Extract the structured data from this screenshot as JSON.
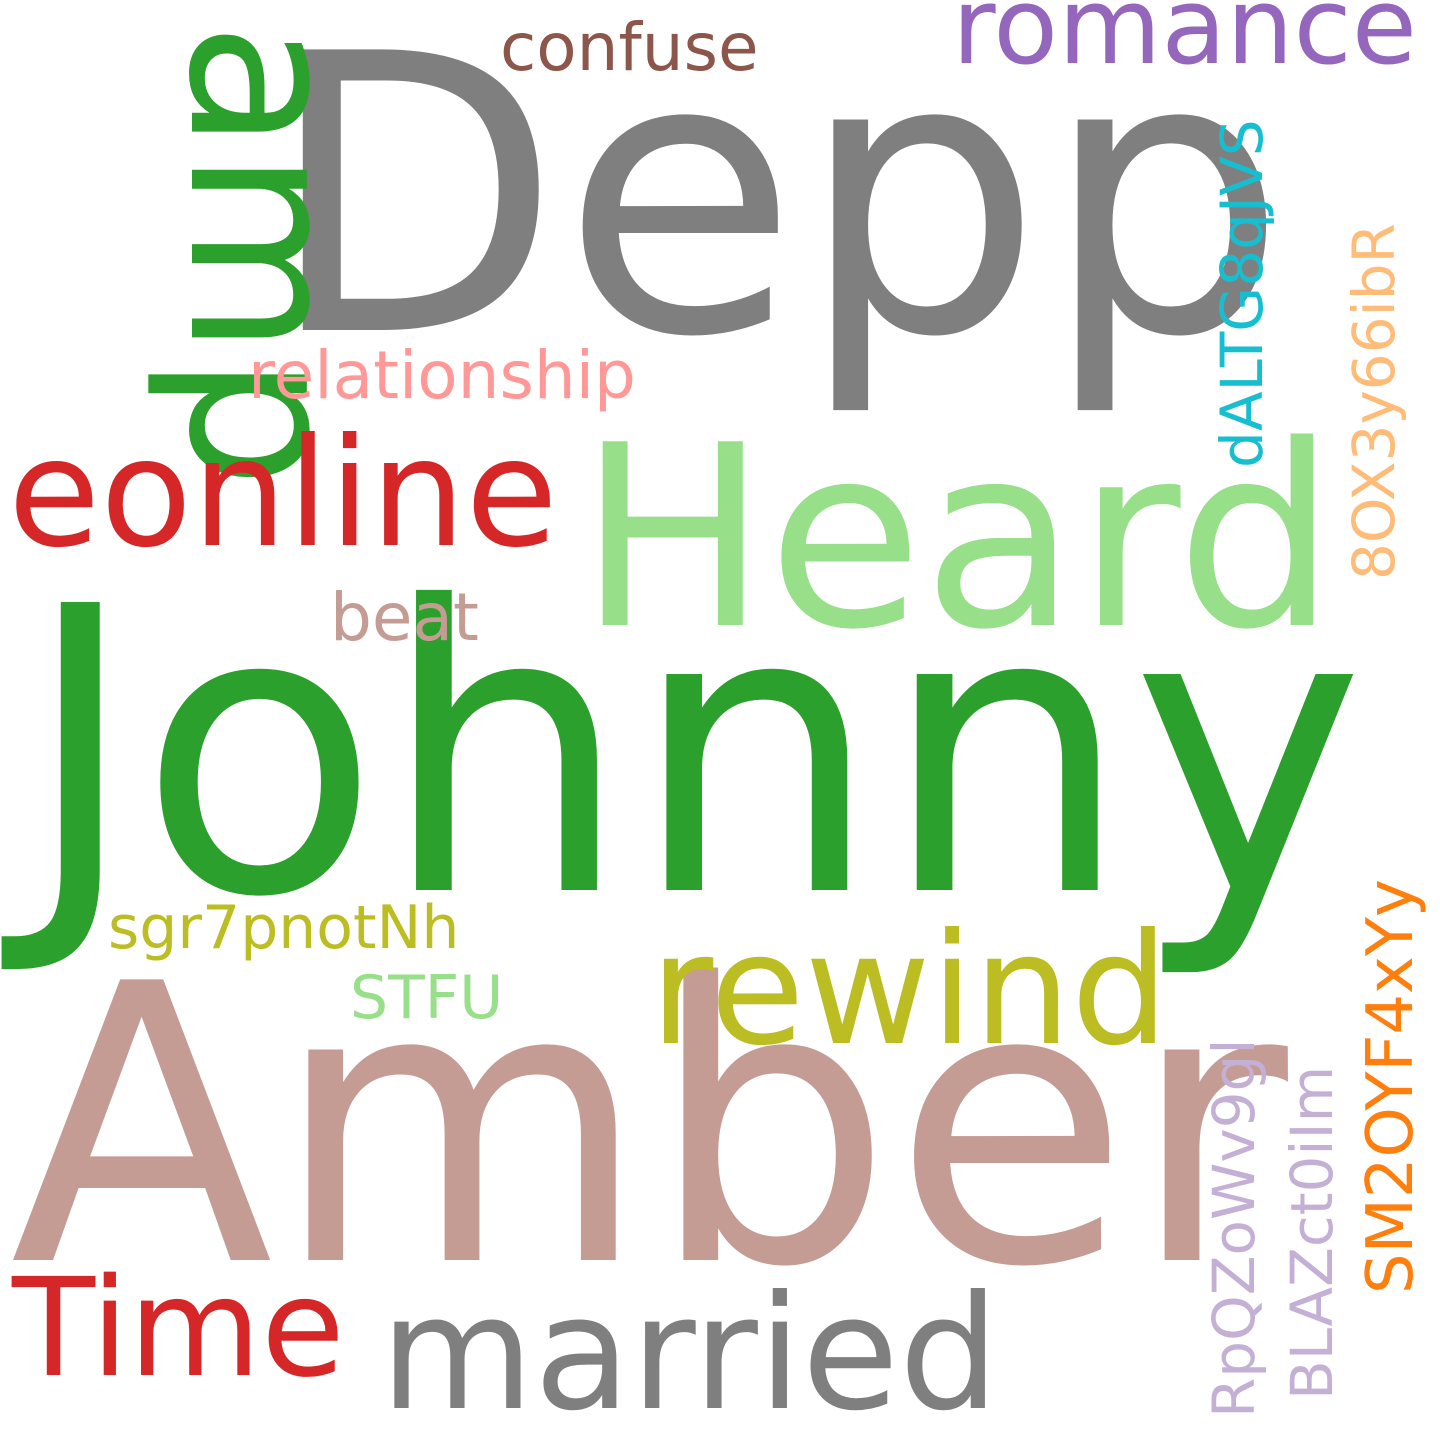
{
  "words": [
    {
      "text": "Depp",
      "color": "#7f7f7f"
    },
    {
      "text": "Johnny",
      "color": "#2ca02c"
    },
    {
      "text": "Amber",
      "color": "#c49c94"
    },
    {
      "text": "Heard",
      "color": "#98df8a"
    },
    {
      "text": "amp",
      "color": "#2ca02c"
    },
    {
      "text": "eonline",
      "color": "#d62728"
    },
    {
      "text": "married",
      "color": "#7f7f7f"
    },
    {
      "text": "rewind",
      "color": "#bcbd22"
    },
    {
      "text": "Time",
      "color": "#d62728"
    },
    {
      "text": "romance",
      "color": "#9467bd"
    },
    {
      "text": "relationship",
      "color": "#ff9896"
    },
    {
      "text": "confuse",
      "color": "#8c564b"
    },
    {
      "text": "dALTG8qJVS",
      "color": "#17becf"
    },
    {
      "text": "8OX3y66ibR",
      "color": "#ffbb78"
    },
    {
      "text": "SM2OYF4xYy",
      "color": "#ff7f0e"
    },
    {
      "text": "sgr7pnotNh",
      "color": "#bcbd22"
    },
    {
      "text": "beat",
      "color": "#c49c94"
    },
    {
      "text": "STFU",
      "color": "#98df8a"
    },
    {
      "text": "BLAZct0iIm",
      "color": "#c5b0d5"
    },
    {
      "text": "RpQZoWv9gl",
      "color": "#c5b0d5"
    }
  ]
}
